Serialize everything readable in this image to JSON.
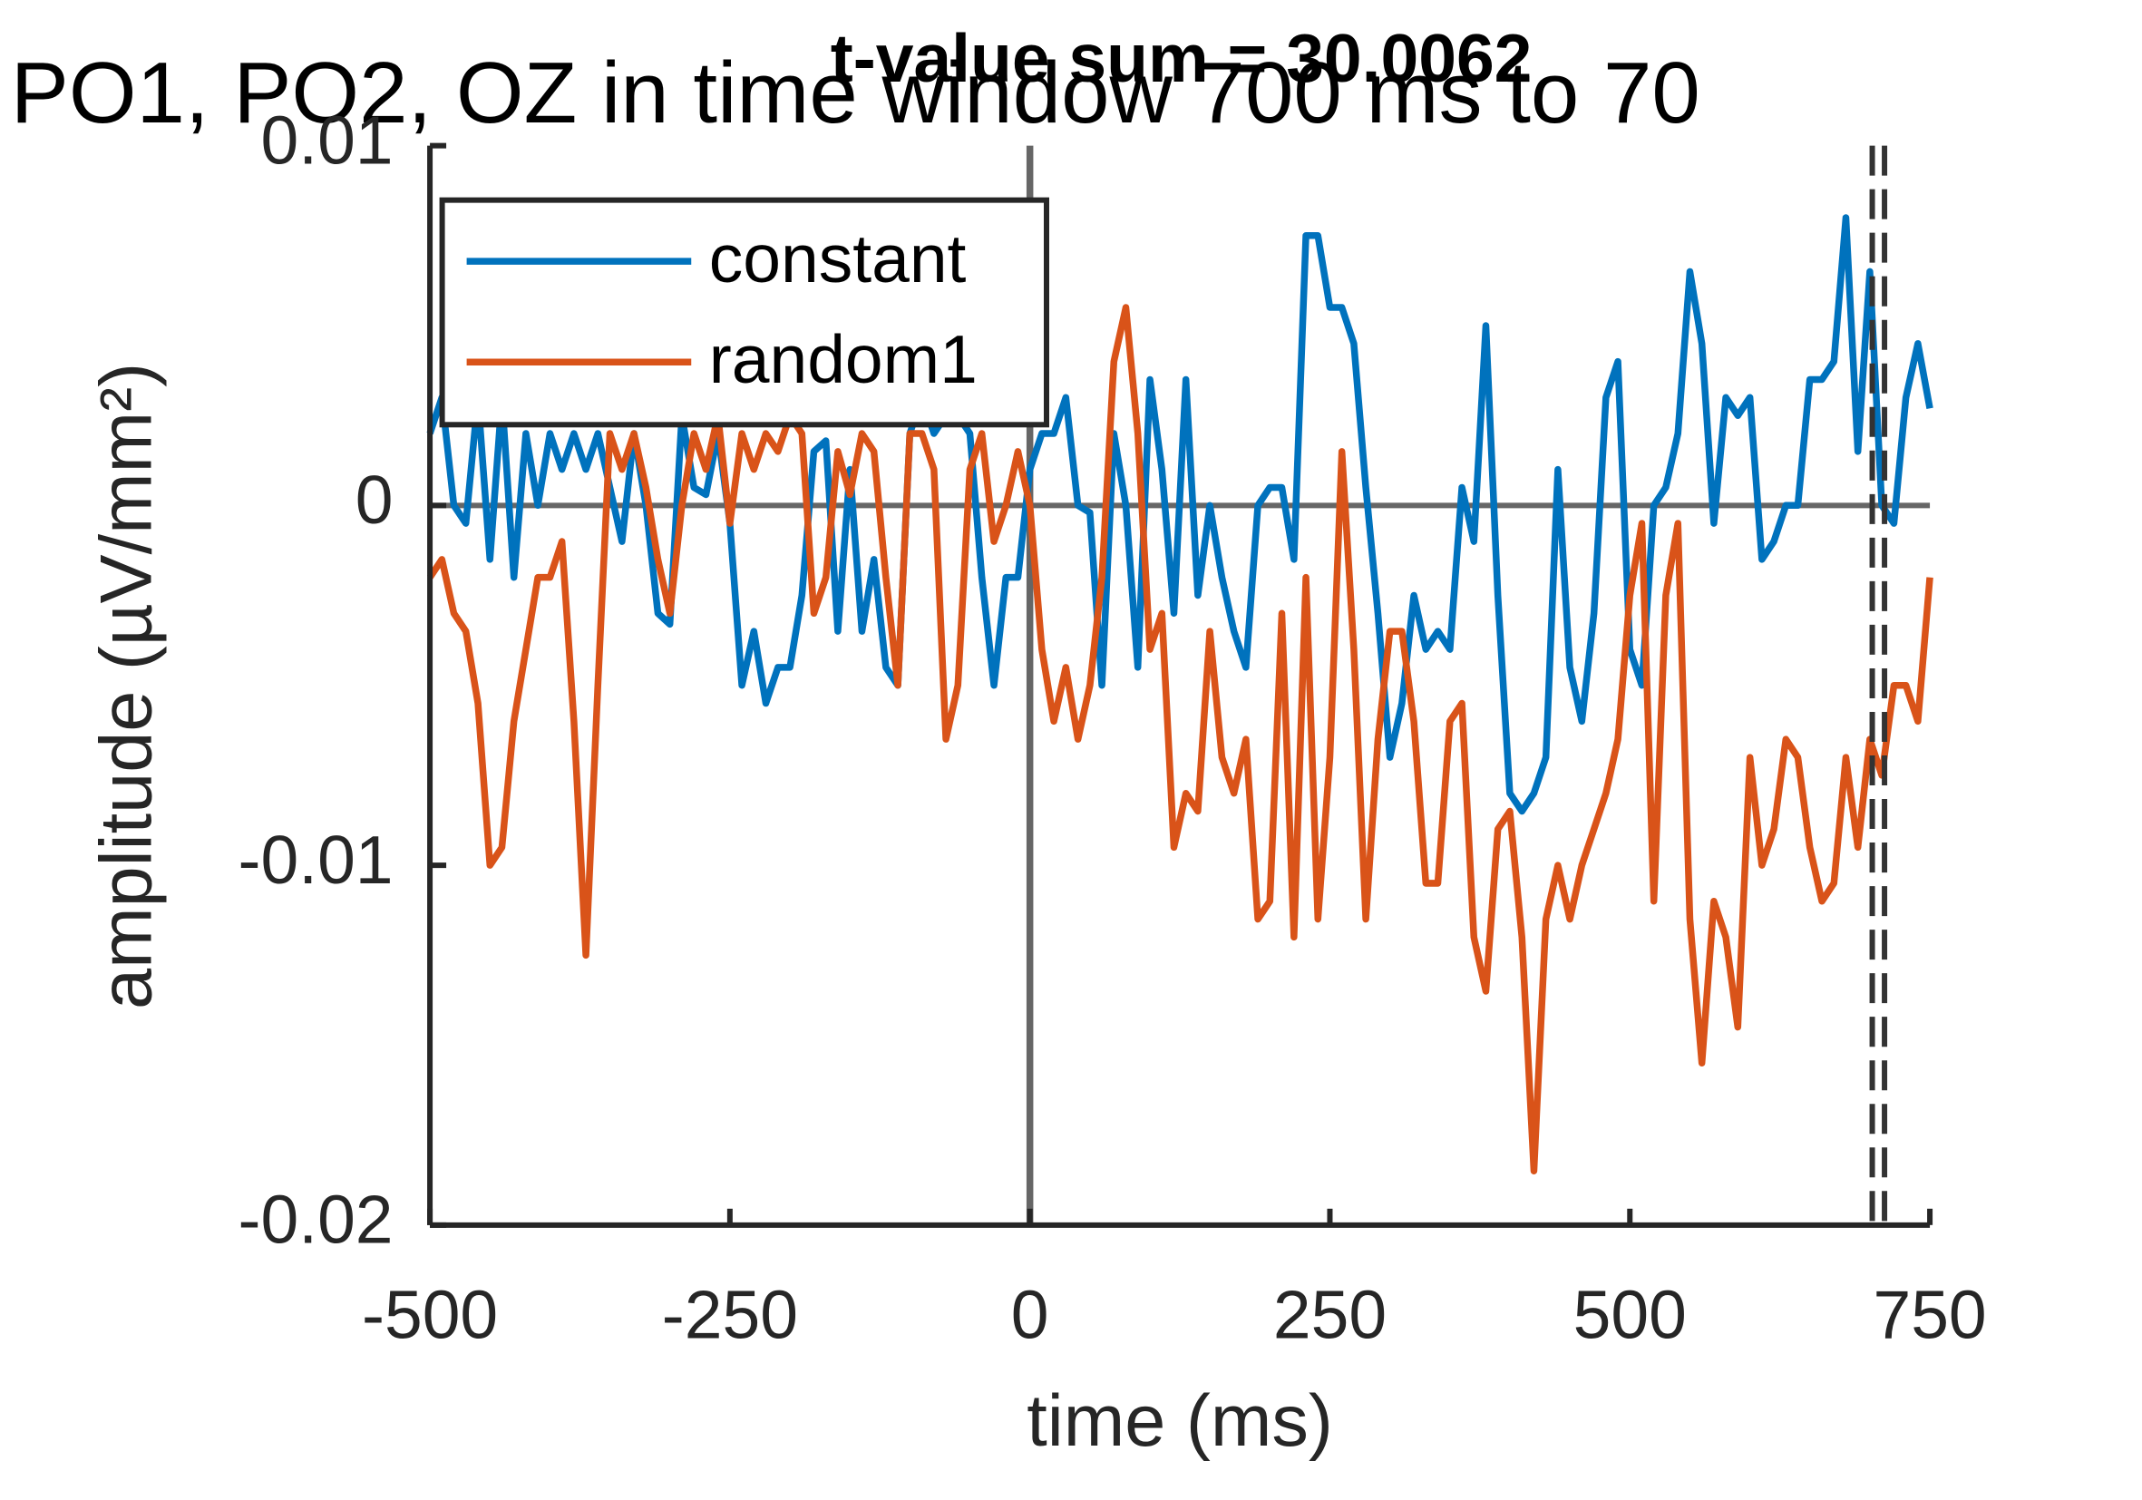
{
  "chart_data": {
    "type": "line",
    "overlay_title": "PO1, PO2, OZ in time window 700 ms to 70",
    "title": "t-value sum = 30.0062",
    "xlabel": "time (ms)",
    "ylabel": "amplitude (µV/mm²)",
    "x": [
      -500,
      -490,
      -480,
      -470,
      -460,
      -450,
      -440,
      -430,
      -420,
      -410,
      -400,
      -390,
      -380,
      -370,
      -360,
      -350,
      -340,
      -330,
      -320,
      -310,
      -300,
      -290,
      -280,
      -270,
      -260,
      -250,
      -240,
      -230,
      -220,
      -210,
      -200,
      -190,
      -180,
      -170,
      -160,
      -150,
      -140,
      -130,
      -120,
      -110,
      -100,
      -90,
      -80,
      -70,
      -60,
      -50,
      -40,
      -30,
      -20,
      -10,
      0,
      10,
      20,
      30,
      40,
      50,
      60,
      70,
      80,
      90,
      100,
      110,
      120,
      130,
      140,
      150,
      160,
      170,
      180,
      190,
      200,
      210,
      220,
      230,
      240,
      250,
      260,
      270,
      280,
      290,
      300,
      310,
      320,
      330,
      340,
      350,
      360,
      370,
      380,
      390,
      400,
      410,
      420,
      430,
      440,
      450,
      460,
      470,
      480,
      490,
      500,
      510,
      520,
      530,
      540,
      550,
      560,
      570,
      580,
      590,
      600,
      610,
      620,
      630,
      640,
      650,
      660,
      670,
      680,
      690,
      700,
      710,
      720,
      730,
      740,
      750
    ],
    "series": [
      {
        "name": "constant",
        "color": "#0072bd",
        "values": [
          0.002,
          0.003,
          0.0,
          -0.0005,
          0.003,
          -0.0015,
          0.003,
          -0.002,
          0.002,
          0.0,
          0.002,
          0.001,
          0.002,
          0.001,
          0.002,
          0.0005,
          -0.001,
          0.002,
          0.0,
          -0.003,
          -0.0033,
          0.0025,
          0.0005,
          0.0003,
          0.002,
          -0.0005,
          -0.005,
          -0.0035,
          -0.0055,
          -0.0045,
          -0.0045,
          -0.0025,
          0.0015,
          0.0018,
          -0.0035,
          0.001,
          -0.0035,
          -0.0015,
          -0.0045,
          -0.005,
          0.002,
          0.003,
          0.002,
          0.0025,
          0.0025,
          0.002,
          -0.002,
          -0.005,
          -0.002,
          -0.002,
          0.001,
          0.002,
          0.002,
          0.003,
          0.0,
          -0.0002,
          -0.005,
          0.002,
          0.0,
          -0.0045,
          0.0035,
          0.001,
          -0.003,
          0.0035,
          -0.0025,
          0.0,
          -0.002,
          -0.0035,
          -0.0045,
          0.0,
          0.0005,
          0.0005,
          -0.0015,
          0.0075,
          0.0075,
          0.0055,
          0.0055,
          0.0045,
          0.0005,
          -0.003,
          -0.007,
          -0.0055,
          -0.0025,
          -0.004,
          -0.0035,
          -0.004,
          0.0005,
          -0.001,
          0.005,
          -0.0025,
          -0.008,
          -0.0085,
          -0.008,
          -0.007,
          0.001,
          -0.0045,
          -0.006,
          -0.003,
          0.003,
          0.004,
          -0.004,
          -0.005,
          0.0,
          0.0005,
          0.002,
          0.0065,
          0.0045,
          -0.0005,
          0.003,
          0.0025,
          0.003,
          -0.0015,
          -0.001,
          0.0,
          0.0,
          0.0035,
          0.0035,
          0.004,
          0.008,
          0.0015,
          0.0065,
          0.0,
          -0.0005,
          0.003,
          0.0045,
          0.0027
        ]
      },
      {
        "name": "random1",
        "color": "#d95319",
        "values": [
          -0.002,
          -0.0015,
          -0.003,
          -0.0035,
          -0.0055,
          -0.01,
          -0.0095,
          -0.006,
          -0.004,
          -0.002,
          -0.002,
          -0.001,
          -0.006,
          -0.0125,
          -0.005,
          0.002,
          0.001,
          0.002,
          0.0005,
          -0.0015,
          -0.003,
          0.0,
          0.002,
          0.001,
          0.0025,
          -0.0005,
          0.002,
          0.001,
          0.002,
          0.0015,
          0.0025,
          0.002,
          -0.003,
          -0.002,
          0.0015,
          0.0003,
          0.002,
          0.0015,
          -0.002,
          -0.005,
          0.002,
          0.002,
          0.001,
          -0.0065,
          -0.005,
          0.001,
          0.002,
          -0.001,
          0.0,
          0.0015,
          0.0,
          -0.004,
          -0.006,
          -0.0045,
          -0.0065,
          -0.005,
          -0.002,
          0.004,
          0.0055,
          0.002,
          -0.004,
          -0.003,
          -0.0095,
          -0.008,
          -0.0085,
          -0.0035,
          -0.007,
          -0.008,
          -0.0065,
          -0.0115,
          -0.011,
          -0.003,
          -0.012,
          -0.002,
          -0.0115,
          -0.007,
          0.0015,
          -0.004,
          -0.0115,
          -0.0065,
          -0.0035,
          -0.0035,
          -0.006,
          -0.0105,
          -0.0105,
          -0.006,
          -0.0055,
          -0.012,
          -0.0135,
          -0.009,
          -0.0085,
          -0.012,
          -0.0185,
          -0.0115,
          -0.01,
          -0.0115,
          -0.01,
          -0.009,
          -0.008,
          -0.0065,
          -0.0025,
          -0.0005,
          -0.011,
          -0.0025,
          -0.0005,
          -0.0115,
          -0.0155,
          -0.011,
          -0.012,
          -0.0145,
          -0.007,
          -0.01,
          -0.009,
          -0.0065,
          -0.007,
          -0.0095,
          -0.011,
          -0.0105,
          -0.007,
          -0.0095,
          -0.0065,
          -0.0075,
          -0.005,
          -0.005,
          -0.006,
          -0.002
        ]
      }
    ],
    "xlim": [
      -500,
      750
    ],
    "xticks": [
      -500,
      -250,
      0,
      250,
      500,
      750
    ],
    "ylim": [
      -0.02,
      0.01
    ],
    "yticks": [
      -0.02,
      -0.01,
      0,
      0.01
    ],
    "hline": 0,
    "vline": 0,
    "dashed_vline": 702,
    "legend": "upper left"
  }
}
